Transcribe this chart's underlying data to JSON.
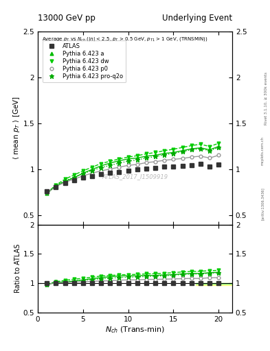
{
  "title_left": "13000 GeV pp",
  "title_right": "Underlying Event",
  "watermark": "ATLAS_2017_I1509919",
  "inner_title": "Average p_{T} vs N_{ch} (|\\eta| < 2.5, p_{T} > 0.5 GeV, p_{T1} > 1 GeV, (TRNSMIN))",
  "ylabel_main": "\\langle mean p_T \\rangle [GeV]",
  "ylabel_ratio": "Ratio to ATLAS",
  "xlabel": "N_{ch} (Trans-min)",
  "ylim_main": [
    0.4,
    2.5
  ],
  "ylim_ratio": [
    0.5,
    2.0
  ],
  "xlim": [
    0.5,
    21.5
  ],
  "atlas_x": [
    1,
    2,
    3,
    4,
    5,
    6,
    7,
    8,
    9,
    10,
    11,
    12,
    13,
    14,
    15,
    16,
    17,
    18,
    19,
    20
  ],
  "atlas_y": [
    0.76,
    0.81,
    0.855,
    0.88,
    0.91,
    0.93,
    0.95,
    0.965,
    0.975,
    0.99,
    1.0,
    1.01,
    1.02,
    1.03,
    1.035,
    1.04,
    1.05,
    1.06,
    1.03,
    1.055
  ],
  "pythia_a_x": [
    1,
    2,
    3,
    4,
    5,
    6,
    7,
    8,
    9,
    10,
    11,
    12,
    13,
    14,
    15,
    16,
    17,
    18,
    19,
    20
  ],
  "pythia_a_y": [
    0.74,
    0.82,
    0.87,
    0.91,
    0.96,
    1.0,
    1.04,
    1.07,
    1.095,
    1.115,
    1.125,
    1.145,
    1.155,
    1.175,
    1.185,
    1.205,
    1.225,
    1.235,
    1.215,
    1.25
  ],
  "pythia_dw_x": [
    1,
    2,
    3,
    4,
    5,
    6,
    7,
    8,
    9,
    10,
    11,
    12,
    13,
    14,
    15,
    16,
    17,
    18,
    19,
    20
  ],
  "pythia_dw_y": [
    0.745,
    0.83,
    0.895,
    0.94,
    0.985,
    1.025,
    1.065,
    1.09,
    1.115,
    1.135,
    1.15,
    1.17,
    1.185,
    1.205,
    1.22,
    1.24,
    1.26,
    1.275,
    1.25,
    1.285
  ],
  "pythia_p0_x": [
    1,
    2,
    3,
    4,
    5,
    6,
    7,
    8,
    9,
    10,
    11,
    12,
    13,
    14,
    15,
    16,
    17,
    18,
    19,
    20
  ],
  "pythia_p0_y": [
    0.745,
    0.815,
    0.86,
    0.895,
    0.93,
    0.96,
    0.985,
    1.005,
    1.025,
    1.045,
    1.055,
    1.075,
    1.085,
    1.1,
    1.11,
    1.12,
    1.135,
    1.145,
    1.125,
    1.155
  ],
  "pythia_proq2o_x": [
    1,
    2,
    3,
    4,
    5,
    6,
    7,
    8,
    9,
    10,
    11,
    12,
    13,
    14,
    15,
    16,
    17,
    18,
    19,
    20
  ],
  "pythia_proq2o_y": [
    0.745,
    0.825,
    0.875,
    0.915,
    0.955,
    0.99,
    1.02,
    1.045,
    1.07,
    1.09,
    1.105,
    1.125,
    1.14,
    1.16,
    1.175,
    1.195,
    1.215,
    1.225,
    1.205,
    1.24
  ],
  "atlas_color": "#333333",
  "pythia_a_color": "#00bb00",
  "pythia_dw_color": "#00cc00",
  "pythia_p0_color": "#999999",
  "pythia_proq2o_color": "#00aa00",
  "band_x1": 17.5,
  "band_x2": 21.5,
  "atlas_band_ylow": 0.965,
  "atlas_band_yhigh": 1.0,
  "atlas_band_color": "#ffff88",
  "green_band_ylow": 0.985,
  "green_band_yhigh": 1.005,
  "green_band_color": "#88ff88",
  "rivet_text": "Rivet 3.1.10, ≥ 300k events",
  "inspire_text": "[arXiv:1306.3436]",
  "mcplots_text": "mcplots.cern.ch"
}
